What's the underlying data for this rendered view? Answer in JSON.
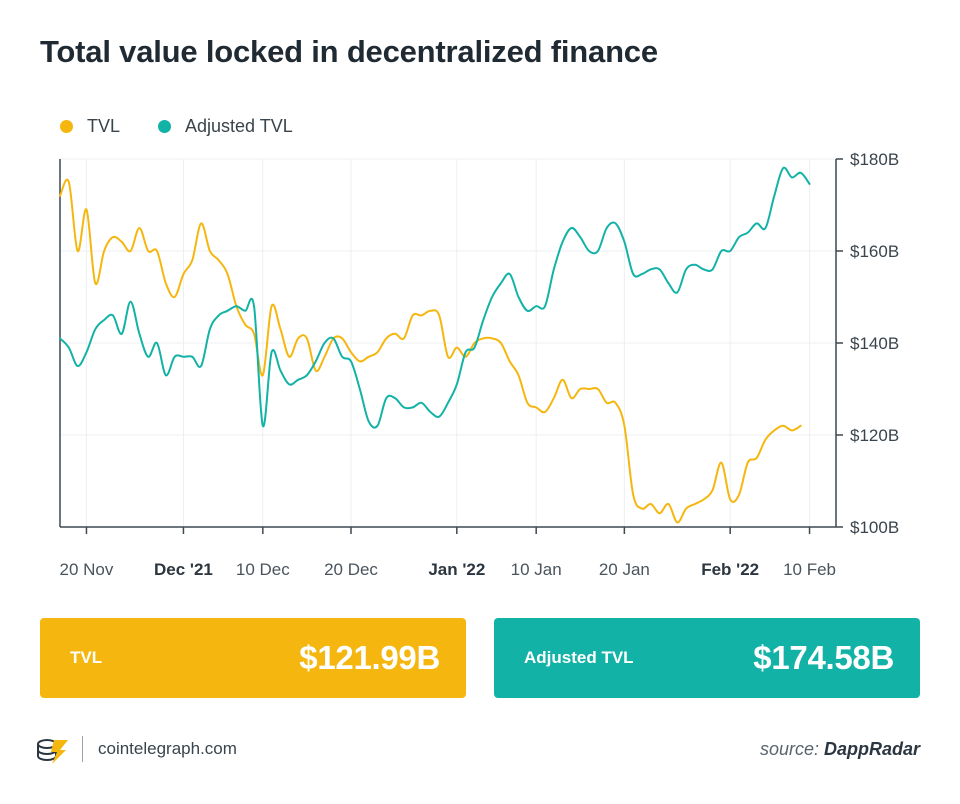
{
  "header": {
    "title": "Total value locked in decentralized finance"
  },
  "legend": [
    {
      "label": "TVL",
      "color": "#f5b70f"
    },
    {
      "label": "Adjusted TVL",
      "color": "#13b2a7"
    }
  ],
  "cards": [
    {
      "label": "TVL",
      "value": "$121.99B",
      "color": "#f5b70f"
    },
    {
      "label": "Adjusted TVL",
      "value": "$174.58B",
      "color": "#13b2a7"
    }
  ],
  "footer": {
    "site": "cointelegraph.com",
    "source_prefix": "source: ",
    "source_name": "DappRadar"
  },
  "chart_data": {
    "type": "line",
    "title": "Total value locked in decentralized finance",
    "xlabel": "",
    "ylabel": "",
    "ylim": [
      100,
      180
    ],
    "y_ticks": [
      100,
      120,
      140,
      160,
      180
    ],
    "y_tick_labels": [
      "$100B",
      "$120B",
      "$140B",
      "$160B",
      "$180B"
    ],
    "y_axis_side": "right",
    "x_ticks": [
      {
        "label": "20 Nov",
        "date": "2021-11-20",
        "bold": false
      },
      {
        "label": "Dec '21",
        "date": "2021-12-01",
        "bold": true
      },
      {
        "label": "10 Dec",
        "date": "2021-12-10",
        "bold": false
      },
      {
        "label": "20 Dec",
        "date": "2021-12-20",
        "bold": false
      },
      {
        "label": "Jan '22",
        "date": "2022-01-01",
        "bold": true
      },
      {
        "label": "10 Jan",
        "date": "2022-01-10",
        "bold": false
      },
      {
        "label": "20 Jan",
        "date": "2022-01-20",
        "bold": false
      },
      {
        "label": "Feb '22",
        "date": "2022-02-01",
        "bold": true
      },
      {
        "label": "10 Feb",
        "date": "2022-02-10",
        "bold": false
      }
    ],
    "x_range": [
      "2021-11-17",
      "2022-02-13"
    ],
    "grid": true,
    "legend_position": "top-left",
    "series": [
      {
        "name": "TVL",
        "color": "#f5b70f",
        "points": [
          [
            "2021-11-17",
            172
          ],
          [
            "2021-11-18",
            175
          ],
          [
            "2021-11-19",
            160
          ],
          [
            "2021-11-20",
            169
          ],
          [
            "2021-11-21",
            153
          ],
          [
            "2021-11-22",
            160
          ],
          [
            "2021-11-23",
            163
          ],
          [
            "2021-11-24",
            162
          ],
          [
            "2021-11-25",
            160
          ],
          [
            "2021-11-26",
            165
          ],
          [
            "2021-11-27",
            160
          ],
          [
            "2021-11-28",
            160
          ],
          [
            "2021-11-29",
            153
          ],
          [
            "2021-11-30",
            150
          ],
          [
            "2021-12-01",
            155
          ],
          [
            "2021-12-02",
            158
          ],
          [
            "2021-12-03",
            166
          ],
          [
            "2021-12-04",
            160
          ],
          [
            "2021-12-05",
            158
          ],
          [
            "2021-12-06",
            155
          ],
          [
            "2021-12-07",
            148
          ],
          [
            "2021-12-08",
            144
          ],
          [
            "2021-12-09",
            142
          ],
          [
            "2021-12-10",
            133
          ],
          [
            "2021-12-11",
            148
          ],
          [
            "2021-12-12",
            143
          ],
          [
            "2021-12-13",
            137
          ],
          [
            "2021-12-14",
            141
          ],
          [
            "2021-12-15",
            141
          ],
          [
            "2021-12-16",
            134
          ],
          [
            "2021-12-17",
            137
          ],
          [
            "2021-12-18",
            141
          ],
          [
            "2021-12-19",
            141
          ],
          [
            "2021-12-20",
            138
          ],
          [
            "2021-12-21",
            136
          ],
          [
            "2021-12-22",
            137
          ],
          [
            "2021-12-23",
            138
          ],
          [
            "2021-12-24",
            141
          ],
          [
            "2021-12-25",
            142
          ],
          [
            "2021-12-26",
            141
          ],
          [
            "2021-12-27",
            146
          ],
          [
            "2021-12-28",
            146
          ],
          [
            "2021-12-29",
            147
          ],
          [
            "2021-12-30",
            146
          ],
          [
            "2021-12-31",
            137
          ],
          [
            "2022-01-01",
            139
          ],
          [
            "2022-01-02",
            137
          ],
          [
            "2022-01-03",
            140
          ],
          [
            "2022-01-04",
            141
          ],
          [
            "2022-01-05",
            141
          ],
          [
            "2022-01-06",
            140
          ],
          [
            "2022-01-07",
            136
          ],
          [
            "2022-01-08",
            133
          ],
          [
            "2022-01-09",
            127
          ],
          [
            "2022-01-10",
            126
          ],
          [
            "2022-01-11",
            125
          ],
          [
            "2022-01-12",
            128
          ],
          [
            "2022-01-13",
            132
          ],
          [
            "2022-01-14",
            128
          ],
          [
            "2022-01-15",
            130
          ],
          [
            "2022-01-16",
            130
          ],
          [
            "2022-01-17",
            130
          ],
          [
            "2022-01-18",
            127
          ],
          [
            "2022-01-19",
            127
          ],
          [
            "2022-01-20",
            122
          ],
          [
            "2022-01-21",
            107
          ],
          [
            "2022-01-22",
            104
          ],
          [
            "2022-01-23",
            105
          ],
          [
            "2022-01-24",
            103
          ],
          [
            "2022-01-25",
            105
          ],
          [
            "2022-01-26",
            101
          ],
          [
            "2022-01-27",
            104
          ],
          [
            "2022-01-28",
            105
          ],
          [
            "2022-01-29",
            106
          ],
          [
            "2022-01-30",
            108
          ],
          [
            "2022-01-31",
            114
          ],
          [
            "2022-02-01",
            106
          ],
          [
            "2022-02-02",
            107
          ],
          [
            "2022-02-03",
            114
          ],
          [
            "2022-02-04",
            115
          ],
          [
            "2022-02-05",
            119
          ],
          [
            "2022-02-06",
            121
          ],
          [
            "2022-02-07",
            122
          ],
          [
            "2022-02-08",
            121
          ],
          [
            "2022-02-09",
            121.99
          ]
        ]
      },
      {
        "name": "Adjusted TVL",
        "color": "#13b2a7",
        "points": [
          [
            "2021-11-17",
            141
          ],
          [
            "2021-11-18",
            139
          ],
          [
            "2021-11-19",
            135
          ],
          [
            "2021-11-20",
            138
          ],
          [
            "2021-11-21",
            143
          ],
          [
            "2021-11-22",
            145
          ],
          [
            "2021-11-23",
            146
          ],
          [
            "2021-11-24",
            142
          ],
          [
            "2021-11-25",
            149
          ],
          [
            "2021-11-26",
            142
          ],
          [
            "2021-11-27",
            137
          ],
          [
            "2021-11-28",
            140
          ],
          [
            "2021-11-29",
            133
          ],
          [
            "2021-11-30",
            137
          ],
          [
            "2021-12-01",
            137
          ],
          [
            "2021-12-02",
            137
          ],
          [
            "2021-12-03",
            135
          ],
          [
            "2021-12-04",
            143
          ],
          [
            "2021-12-05",
            146
          ],
          [
            "2021-12-06",
            147
          ],
          [
            "2021-12-07",
            148
          ],
          [
            "2021-12-08",
            147
          ],
          [
            "2021-12-09",
            148
          ],
          [
            "2021-12-10",
            122
          ],
          [
            "2021-12-11",
            138
          ],
          [
            "2021-12-12",
            134
          ],
          [
            "2021-12-13",
            131
          ],
          [
            "2021-12-14",
            132
          ],
          [
            "2021-12-15",
            133
          ],
          [
            "2021-12-16",
            136
          ],
          [
            "2021-12-17",
            140
          ],
          [
            "2021-12-18",
            141
          ],
          [
            "2021-12-19",
            137
          ],
          [
            "2021-12-20",
            136
          ],
          [
            "2021-12-21",
            130
          ],
          [
            "2021-12-22",
            123
          ],
          [
            "2021-12-23",
            122
          ],
          [
            "2021-12-24",
            128
          ],
          [
            "2021-12-25",
            128
          ],
          [
            "2021-12-26",
            126
          ],
          [
            "2021-12-27",
            126
          ],
          [
            "2021-12-28",
            127
          ],
          [
            "2021-12-29",
            125
          ],
          [
            "2021-12-30",
            124
          ],
          [
            "2021-12-31",
            127
          ],
          [
            "2022-01-01",
            131
          ],
          [
            "2022-01-02",
            138
          ],
          [
            "2022-01-03",
            139
          ],
          [
            "2022-01-04",
            145
          ],
          [
            "2022-01-05",
            150
          ],
          [
            "2022-01-06",
            153
          ],
          [
            "2022-01-07",
            155
          ],
          [
            "2022-01-08",
            150
          ],
          [
            "2022-01-09",
            147
          ],
          [
            "2022-01-10",
            148
          ],
          [
            "2022-01-11",
            148
          ],
          [
            "2022-01-12",
            156
          ],
          [
            "2022-01-13",
            162
          ],
          [
            "2022-01-14",
            165
          ],
          [
            "2022-01-15",
            163
          ],
          [
            "2022-01-16",
            160
          ],
          [
            "2022-01-17",
            160
          ],
          [
            "2022-01-18",
            165
          ],
          [
            "2022-01-19",
            166
          ],
          [
            "2022-01-20",
            162
          ],
          [
            "2022-01-21",
            155
          ],
          [
            "2022-01-22",
            155
          ],
          [
            "2022-01-23",
            156
          ],
          [
            "2022-01-24",
            156
          ],
          [
            "2022-01-25",
            153
          ],
          [
            "2022-01-26",
            151
          ],
          [
            "2022-01-27",
            156
          ],
          [
            "2022-01-28",
            157
          ],
          [
            "2022-01-29",
            156
          ],
          [
            "2022-01-30",
            156
          ],
          [
            "2022-01-31",
            160
          ],
          [
            "2022-02-01",
            160
          ],
          [
            "2022-02-02",
            163
          ],
          [
            "2022-02-03",
            164
          ],
          [
            "2022-02-04",
            166
          ],
          [
            "2022-02-05",
            165
          ],
          [
            "2022-02-06",
            172
          ],
          [
            "2022-02-07",
            178
          ],
          [
            "2022-02-08",
            176
          ],
          [
            "2022-02-09",
            177
          ],
          [
            "2022-02-10",
            174.58
          ]
        ]
      }
    ]
  }
}
